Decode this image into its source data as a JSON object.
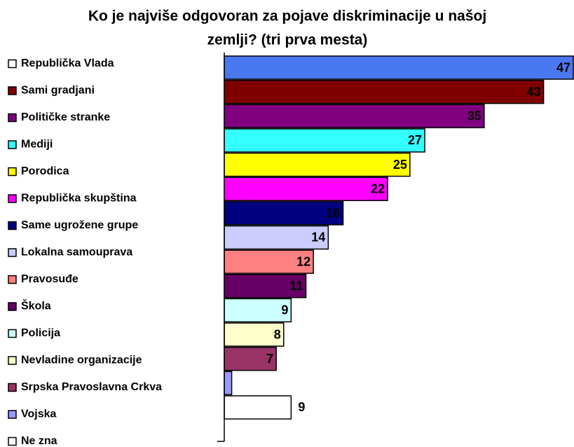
{
  "chart_data": {
    "type": "hbar",
    "title_lines": [
      "Ko je najviše odgovoran za pojave diskriminacije u našoj",
      "zemlji? (tri prva mesta)"
    ],
    "categories": [
      "Republička Vlada",
      "Sami gradjani",
      "Političke stranke",
      "Mediji",
      "Porodica",
      "Republička skupština",
      "Same ugrožene grupe",
      "Lokalna samouprava",
      "Pravosuđe",
      "Škola",
      "Policija",
      "Nevladine organizacije",
      "Srpska Pravoslavna Crkva",
      "Vojska",
      "Ne zna"
    ],
    "values": [
      47,
      43,
      35,
      27,
      25,
      22,
      16,
      14,
      12,
      11,
      9,
      8,
      7,
      1,
      9
    ],
    "value_labels": [
      "47",
      "43",
      "35",
      "27",
      "25",
      "22",
      "16",
      "14",
      "12",
      "11",
      "9",
      "8",
      "7",
      null,
      "9"
    ],
    "colors": [
      "#4a78f0",
      "#800000",
      "#800080",
      "#33ffff",
      "#ffff00",
      "#ff00ff",
      "#000080",
      "#ccccff",
      "#ff8080",
      "#660066",
      "#ccffff",
      "#ffffcc",
      "#993366",
      "#9999ff",
      "#ffffff"
    ],
    "legend_colors": [
      "#ffffff",
      "#800000",
      "#800080",
      "#33ffff",
      "#ffff00",
      "#ff00ff",
      "#000080",
      "#ccccff",
      "#ff8080",
      "#660066",
      "#ccffff",
      "#ffffcc",
      "#993366",
      "#9999ff",
      "#ffffff"
    ],
    "xlim": [
      0,
      47
    ]
  }
}
